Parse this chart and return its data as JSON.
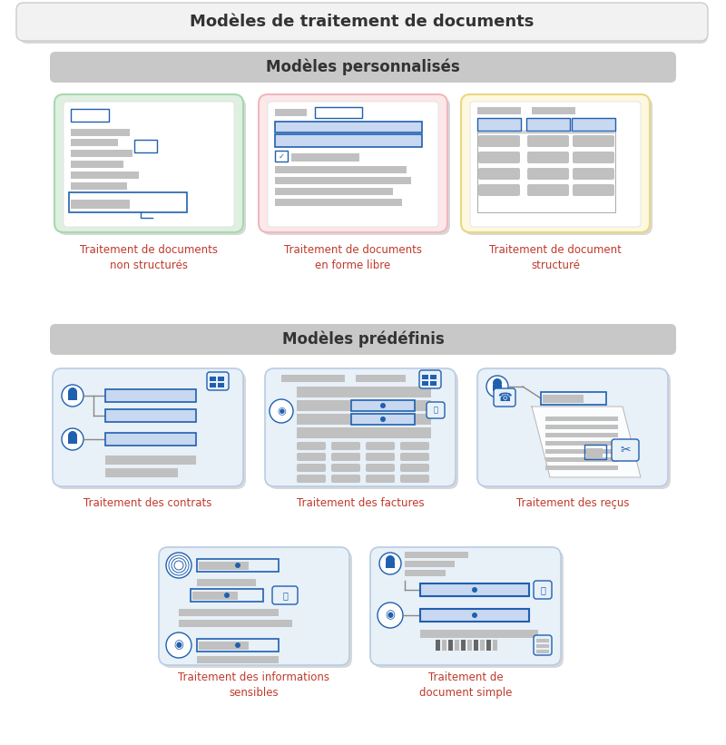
{
  "title": "Modèles de traitement de documents",
  "section1_title": "Modèles personnalisés",
  "section2_title": "Modèles prédéfinis",
  "custom_labels": [
    "Traitement de documents\nnon structurés",
    "Traitement de documents\nen forme libre",
    "Traitement de document\nstructuré"
  ],
  "predef_labels_row1": [
    "Traitement des contrats",
    "Traitement des factures",
    "Traitement des reçus"
  ],
  "predef_labels_row2": [
    "Traitement des informations\nsensibles",
    "Traitement de\ndocument simple"
  ],
  "bg_color": "#ffffff",
  "outer_box_color": "#f2f2f2",
  "outer_box_border": "#cccccc",
  "section_box_color": "#c8c8c8",
  "section_text_color": "#333333",
  "custom_box_colors": [
    "#dff0e0",
    "#fce8e8",
    "#fdf8e0"
  ],
  "custom_box_borders": [
    "#a8d8b0",
    "#f0b8bf",
    "#e8d880"
  ],
  "predef_box_color": "#e8f0f8",
  "predef_box_border": "#b8cce4",
  "label_color": "#c0392b",
  "bar_color": "#c0c0c0",
  "bar_blue": "#2060b0",
  "bar_blue_fill": "#c8d8f0",
  "shadow_color": "#d8d8d8"
}
